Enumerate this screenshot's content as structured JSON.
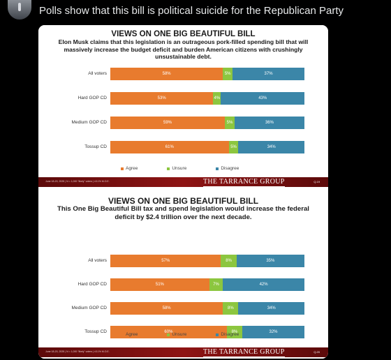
{
  "post": {
    "text": "Polls show that this bill is political suicide for the Republican Party"
  },
  "colors": {
    "agree": "#e87b2e",
    "unsure": "#8cc63f",
    "disagree": "#3b86a8",
    "footer": "#8e1414"
  },
  "legend": {
    "agree": "Agree",
    "unsure": "Unsure",
    "disagree": "Disagree"
  },
  "slides": [
    {
      "title": "VIEWS ON ONE BIG BEAUTIFUL BILL",
      "subtitle": "Elon Musk claims that this legislation is an outrageous pork-filled spending bill that will massively increase the budget deficit and burden American citizens with crushingly unsustainable debt.",
      "footnote": "June 18-20, 2025 | N = 1,000 \"likely\" voters | ±3.1% M.O.E.",
      "brand": "THE TARRANCE GROUP",
      "page": "Q.19",
      "chart_data": {
        "type": "bar",
        "orientation": "horizontal",
        "stacked": true,
        "categories": [
          "All voters",
          "Hard GOP CD",
          "Medium GOP CD",
          "Tossup CD"
        ],
        "series": [
          {
            "name": "Agree",
            "values": [
              58,
              53,
              59,
              61
            ]
          },
          {
            "name": "Unsure",
            "values": [
              5,
              4,
              5,
              5
            ]
          },
          {
            "name": "Disagree",
            "values": [
              37,
              43,
              36,
              34
            ]
          }
        ],
        "labels": {
          "Agree": [
            "58%",
            "53%",
            "59%",
            "61%"
          ],
          "Unsure": [
            "5%",
            "4%",
            "5%",
            "5%"
          ],
          "Disagree": [
            "37%",
            "43%",
            "36%",
            "34%"
          ]
        },
        "legend_position": "bottom"
      }
    },
    {
      "title": "VIEWS ON ONE BIG BEAUTIFUL BILL",
      "subtitle": "This One Big Beautiful Bill tax and spend legislation would increase the federal deficit by $2.4 trillion over the next decade.",
      "footnote": "June 18-20, 2025 | N = 1,000 \"likely\" voters | ±3.1% M.O.E.",
      "brand": "THE TARRANCE GROUP",
      "page": "Q.20",
      "chart_data": {
        "type": "bar",
        "orientation": "horizontal",
        "stacked": true,
        "categories": [
          "All voters",
          "Hard GOP CD",
          "Medium GOP CD",
          "Tossup CD"
        ],
        "series": [
          {
            "name": "Agree",
            "values": [
              57,
              51,
              58,
              60
            ]
          },
          {
            "name": "Unsure",
            "values": [
              8,
              7,
              8,
              8
            ]
          },
          {
            "name": "Disagree",
            "values": [
              35,
              42,
              34,
              32
            ]
          }
        ],
        "labels": {
          "Agree": [
            "57%",
            "51%",
            "58%",
            "60%"
          ],
          "Unsure": [
            "8%",
            "7%",
            "8%",
            "8%"
          ],
          "Disagree": [
            "35%",
            "42%",
            "34%",
            "32%"
          ]
        },
        "legend_position": "bottom"
      }
    }
  ]
}
